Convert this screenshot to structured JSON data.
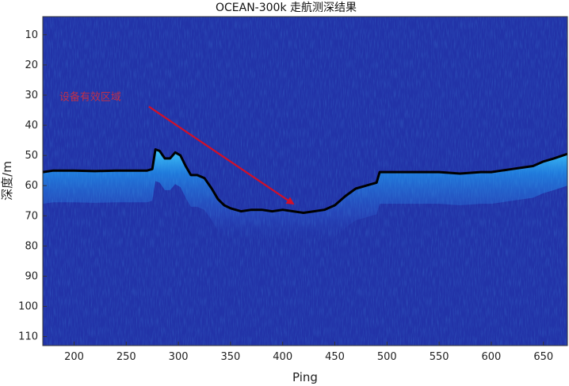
{
  "chart_data": {
    "type": "heatmap",
    "title": "OCEAN-300k 走航测深结果",
    "xlabel": "Ping",
    "ylabel": "深度/m",
    "xlim": [
      170,
      673
    ],
    "ylim": [
      113,
      4
    ],
    "y_reversed": true,
    "x_ticks": [
      200,
      250,
      300,
      350,
      400,
      450,
      500,
      550,
      600,
      650
    ],
    "y_ticks": [
      10,
      20,
      30,
      40,
      50,
      60,
      70,
      80,
      90,
      100,
      110
    ],
    "grid": false,
    "colormap": "jet",
    "background_color": "#2233a8",
    "bottom_line_color": "#000000",
    "series": [
      {
        "values_x": [
          170,
          180,
          200,
          220,
          240,
          260,
          270,
          275,
          278,
          282,
          287,
          292,
          297,
          302,
          307,
          312,
          318,
          325,
          332,
          338,
          344,
          350,
          360,
          370,
          380,
          390,
          400,
          410,
          420,
          430,
          440,
          450,
          460,
          470,
          480,
          490,
          493,
          496,
          510,
          530,
          550,
          570,
          590,
          600,
          610,
          620,
          630,
          640,
          650,
          660,
          673
        ],
        "values_y": [
          55.5,
          55,
          55,
          55.2,
          55,
          55,
          55,
          54.5,
          48,
          48.5,
          51,
          51,
          49,
          50,
          53.5,
          56.5,
          56.5,
          57.5,
          61,
          64.5,
          66.5,
          67.5,
          68.5,
          68,
          68,
          68.5,
          68,
          68.5,
          69,
          68.5,
          68,
          66.5,
          63.5,
          61,
          60,
          59,
          55.5,
          55.5,
          55.5,
          55.5,
          55.5,
          56,
          55.5,
          55.5,
          55,
          54.5,
          54,
          53.5,
          52,
          51,
          49.5
        ]
      }
    ],
    "annotations": [
      {
        "text": "设备有效区域",
        "arrow_from": [
          258,
          33
        ],
        "arrow_to": [
          410,
          66
        ],
        "color": "#d0102a"
      }
    ]
  }
}
